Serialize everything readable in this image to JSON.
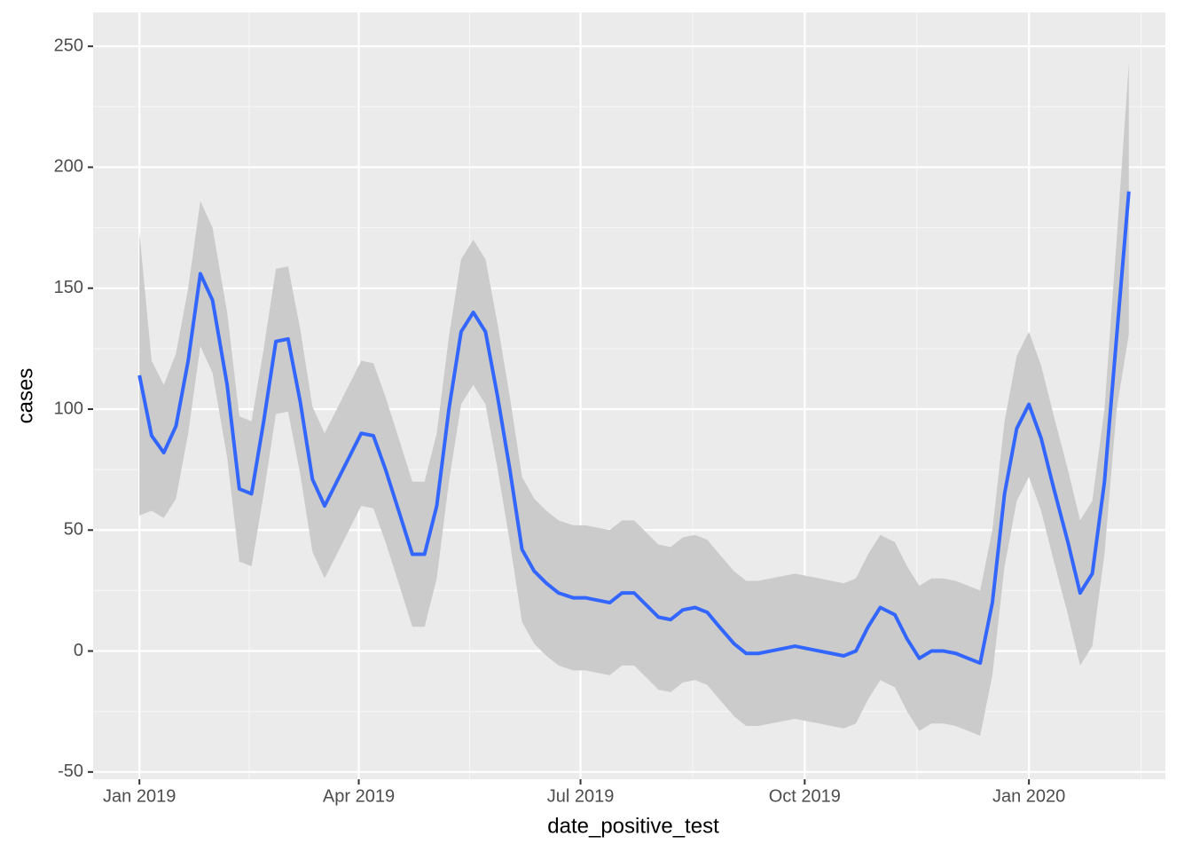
{
  "chart_data": {
    "type": "line",
    "x_label": "date_positive_test",
    "y_label": "cases",
    "x": [
      0,
      5,
      10,
      15,
      20,
      25,
      30,
      36,
      41,
      46,
      51,
      56,
      61,
      66,
      71,
      76,
      81,
      86,
      91,
      96,
      101,
      107,
      112,
      117,
      122,
      127,
      132,
      137,
      142,
      147,
      152,
      157,
      162,
      167,
      172,
      178,
      183,
      188,
      193,
      198,
      203,
      208,
      213,
      218,
      223,
      228,
      233,
      238,
      244,
      249,
      254,
      259,
      264,
      269,
      274,
      279,
      284,
      289,
      294,
      299,
      304,
      310,
      315,
      320,
      325,
      330,
      335,
      340,
      345,
      350,
      355,
      360,
      365,
      370,
      375,
      381,
      386,
      391,
      396,
      401,
      406
    ],
    "values": [
      114,
      89,
      82,
      93,
      120,
      156,
      145,
      110,
      67,
      65,
      95,
      128,
      129,
      103,
      71,
      60,
      70,
      80,
      90,
      89,
      75,
      56,
      40,
      40,
      60,
      100,
      132,
      140,
      132,
      105,
      75,
      42,
      33,
      28,
      24,
      22,
      22,
      21,
      20,
      24,
      24,
      19,
      14,
      13,
      17,
      18,
      16,
      10,
      3,
      -1,
      -1,
      0,
      1,
      2,
      1,
      0,
      -1,
      -2,
      0,
      10,
      18,
      15,
      5,
      -3,
      0,
      0,
      -1,
      -3,
      -5,
      20,
      65,
      92,
      102,
      88,
      68,
      45,
      24,
      32,
      70,
      130,
      190
    ],
    "lower": [
      56,
      58,
      55,
      63,
      90,
      126,
      115,
      80,
      37,
      35,
      65,
      98,
      99,
      73,
      41,
      30,
      40,
      50,
      60,
      59,
      45,
      26,
      10,
      10,
      30,
      70,
      102,
      110,
      102,
      75,
      45,
      12,
      3,
      -2,
      -6,
      -8,
      -8,
      -9,
      -10,
      -6,
      -6,
      -11,
      -16,
      -17,
      -13,
      -12,
      -14,
      -20,
      -27,
      -31,
      -31,
      -30,
      -29,
      -28,
      -29,
      -30,
      -31,
      -32,
      -30,
      -20,
      -12,
      -15,
      -25,
      -33,
      -30,
      -30,
      -31,
      -33,
      -35,
      -10,
      35,
      62,
      72,
      58,
      38,
      15,
      -6,
      2,
      40,
      100,
      131
    ],
    "upper": [
      173,
      120,
      110,
      123,
      150,
      186,
      175,
      140,
      97,
      95,
      125,
      158,
      159,
      133,
      101,
      90,
      100,
      110,
      120,
      119,
      105,
      86,
      70,
      70,
      90,
      130,
      162,
      170,
      162,
      135,
      105,
      72,
      63,
      58,
      54,
      52,
      52,
      51,
      50,
      54,
      54,
      49,
      44,
      43,
      47,
      48,
      46,
      40,
      33,
      29,
      29,
      30,
      31,
      32,
      31,
      30,
      29,
      28,
      30,
      40,
      48,
      45,
      35,
      27,
      30,
      30,
      29,
      27,
      25,
      50,
      95,
      122,
      132,
      118,
      98,
      75,
      54,
      62,
      100,
      170,
      243
    ],
    "line_color": "#3366ff",
    "band_color": "#cbcbcb",
    "xlim": [
      -19,
      421
    ],
    "xticks": [
      {
        "value": 0,
        "label": "Jan 2019"
      },
      {
        "value": 90,
        "label": "Apr 2019"
      },
      {
        "value": 181,
        "label": "Jul 2019"
      },
      {
        "value": 273,
        "label": "Oct 2019"
      },
      {
        "value": 365,
        "label": "Jan 2020"
      }
    ],
    "ylim": [
      -53,
      264
    ],
    "yticks": [
      -50,
      0,
      50,
      100,
      150,
      200,
      250
    ],
    "grid": true
  }
}
